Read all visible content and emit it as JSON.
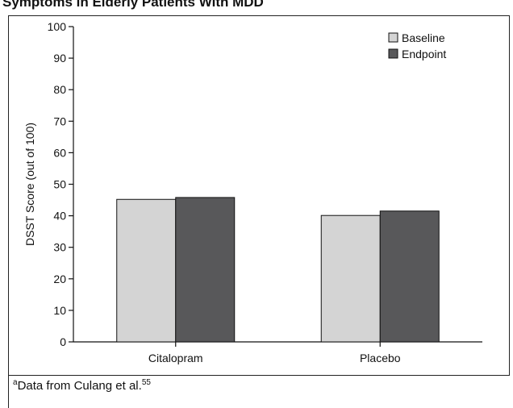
{
  "page": {
    "title": "Symptoms in Elderly Patients With MDD",
    "footnote_marker": "a",
    "footnote_text": "Data from Culang et al.",
    "footnote_ref": "55"
  },
  "chart_data": {
    "type": "bar",
    "ylabel": "DSST Score (out of 100)",
    "ylim": [
      0,
      100
    ],
    "yticks": [
      0,
      10,
      20,
      30,
      40,
      50,
      60,
      70,
      80,
      90,
      100
    ],
    "categories": [
      "Citalopram",
      "Placebo"
    ],
    "series": [
      {
        "name": "Baseline",
        "values": [
          45.2,
          40.1
        ],
        "color": "#d4d4d4"
      },
      {
        "name": "Endpoint",
        "values": [
          45.8,
          41.5
        ],
        "color": "#58585a"
      }
    ],
    "legend_position": "top-right",
    "grid": false
  }
}
